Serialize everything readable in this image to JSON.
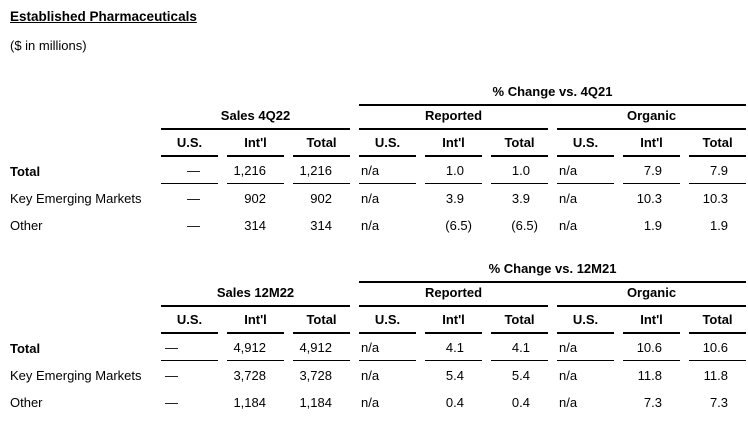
{
  "page": {
    "title": "Established Pharmaceuticals",
    "subtitle": "($ in millions)"
  },
  "colors": {
    "text": "#000000",
    "rule_lines": "#000000",
    "background": "#ffffff"
  },
  "tables": [
    {
      "change_header": "% Change vs. 4Q21",
      "sales_header": "Sales 4Q22",
      "reported_header": "Reported",
      "organic_header": "Organic",
      "col_headers": [
        "U.S.",
        "Int'l",
        "Total",
        "U.S.",
        "Int'l",
        "Total",
        "U.S.",
        "Int'l",
        "Total"
      ],
      "rows": [
        {
          "label": "Total",
          "cells": [
            "—",
            "1,216",
            "1,216",
            "n/a",
            "1.0",
            "1.0",
            "n/a",
            "7.9",
            "7.9"
          ]
        },
        {
          "label": "Key Emerging Markets",
          "cells": [
            "—",
            "902",
            "902",
            "n/a",
            "3.9",
            "3.9",
            "n/a",
            "10.3",
            "10.3"
          ]
        },
        {
          "label": "Other",
          "cells": [
            "—",
            "314",
            "314",
            "n/a",
            "(6.5)",
            "(6.5)",
            "n/a",
            "1.9",
            "1.9"
          ]
        }
      ]
    },
    {
      "change_header": "% Change vs. 12M21",
      "sales_header": "Sales 12M22",
      "reported_header": "Reported",
      "organic_header": "Organic",
      "col_headers": [
        "U.S.",
        "Int'l",
        "Total",
        "U.S.",
        "Int'l",
        "Total",
        "U.S.",
        "Int'l",
        "Total"
      ],
      "rows": [
        {
          "label": "Total",
          "cells": [
            "—",
            "4,912",
            "4,912",
            "n/a",
            "4.1",
            "4.1",
            "n/a",
            "10.6",
            "10.6"
          ]
        },
        {
          "label": "Key Emerging Markets",
          "cells": [
            "—",
            "3,728",
            "3,728",
            "n/a",
            "5.4",
            "5.4",
            "n/a",
            "11.8",
            "11.8"
          ]
        },
        {
          "label": "Other",
          "cells": [
            "—",
            "1,184",
            "1,184",
            "n/a",
            "0.4",
            "0.4",
            "n/a",
            "7.3",
            "7.3"
          ]
        }
      ]
    }
  ]
}
